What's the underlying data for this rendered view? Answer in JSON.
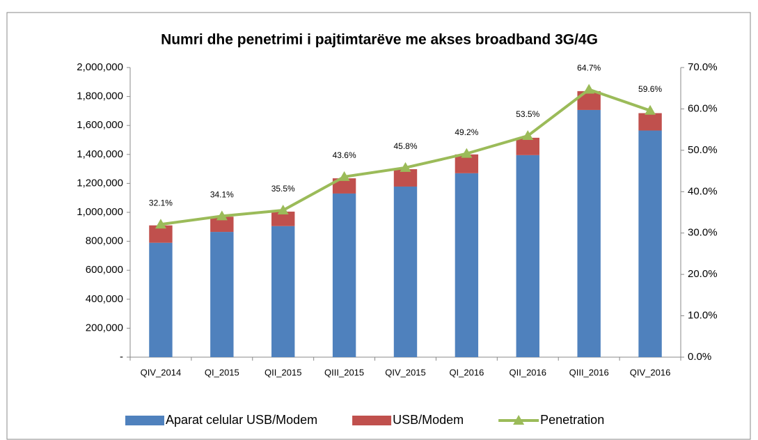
{
  "chart_data": {
    "type": "bar-line",
    "title": "Numri dhe penetrimi i pajtimtarëve me akses broadband 3G/4G",
    "categories": [
      "QIV_2014",
      "QI_2015",
      "QII_2015",
      "QIII_2015",
      "QIV_2015",
      "QI_2016",
      "QII_2016",
      "QIII_2016",
      "QIV_2016"
    ],
    "series": [
      {
        "name": "Aparat celular USB/Modem",
        "color": "#4f81bd",
        "kind": "bar",
        "values": [
          790000,
          865000,
          905000,
          1130000,
          1178000,
          1270000,
          1395000,
          1707000,
          1565000
        ]
      },
      {
        "name": "USB/Modem",
        "color": "#c0504d",
        "kind": "bar",
        "values": [
          120000,
          105000,
          100000,
          105000,
          120000,
          130000,
          120000,
          130000,
          120000
        ]
      },
      {
        "name": "Penetration",
        "color": "#9bbb59",
        "kind": "line",
        "axis": "y2",
        "values": [
          32.1,
          34.1,
          35.5,
          43.6,
          45.8,
          49.2,
          53.5,
          64.7,
          59.6
        ],
        "value_labels": [
          "32.1%",
          "34.1%",
          "35.5%",
          "43.6%",
          "45.8%",
          "49.2%",
          "53.5%",
          "64.7%",
          "59.6%"
        ]
      }
    ],
    "stacked": true,
    "ylim": [
      0,
      2000000
    ],
    "yticks": [
      {
        "value": 0,
        "label": "-"
      },
      {
        "value": 200000,
        "label": "200,000"
      },
      {
        "value": 400000,
        "label": "400,000"
      },
      {
        "value": 600000,
        "label": "600,000"
      },
      {
        "value": 800000,
        "label": "800,000"
      },
      {
        "value": 1000000,
        "label": "1,000,000"
      },
      {
        "value": 1200000,
        "label": "1,200,000"
      },
      {
        "value": 1400000,
        "label": "1,400,000"
      },
      {
        "value": 1600000,
        "label": "1,600,000"
      },
      {
        "value": 1800000,
        "label": "1,800,000"
      },
      {
        "value": 2000000,
        "label": "2,000,000"
      }
    ],
    "y2lim": [
      0,
      70
    ],
    "y2ticks": [
      {
        "value": 0,
        "label": "0.0%"
      },
      {
        "value": 10,
        "label": "10.0%"
      },
      {
        "value": 20,
        "label": "20.0%"
      },
      {
        "value": 30,
        "label": "30.0%"
      },
      {
        "value": 40,
        "label": "40.0%"
      },
      {
        "value": 50,
        "label": "50.0%"
      },
      {
        "value": 60,
        "label": "60.0%"
      },
      {
        "value": 70,
        "label": "70.0%"
      }
    ],
    "legend": "bottom"
  }
}
